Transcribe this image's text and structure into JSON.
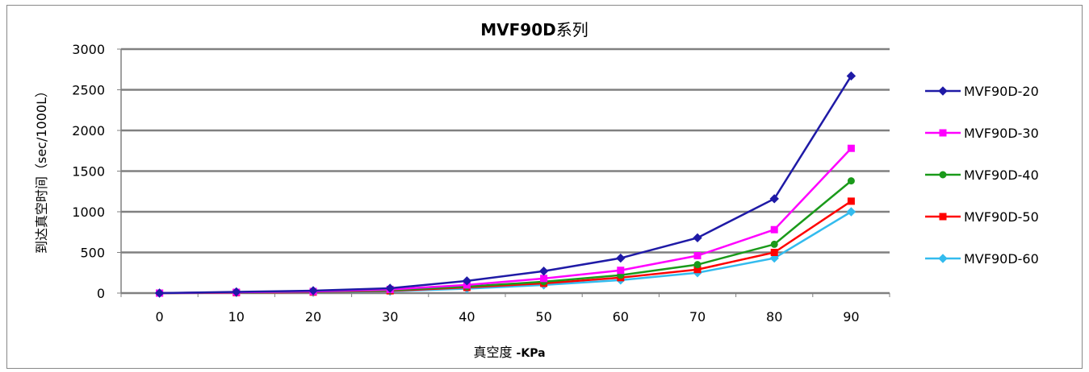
{
  "chart_data": {
    "type": "line",
    "title": "MVF90D系列",
    "title_parts": [
      "MVF90D",
      "系列"
    ],
    "xlabel": "真空度 -KPa",
    "xlabel_parts": [
      "真空度 ",
      "-KPa"
    ],
    "ylabel": "到达真空时间（sec/1000L）",
    "x": [
      0,
      10,
      20,
      30,
      40,
      50,
      60,
      70,
      80,
      90
    ],
    "x_ticks": [
      "0",
      "10",
      "20",
      "30",
      "40",
      "50",
      "60",
      "70",
      "80",
      "90"
    ],
    "y_ticks": [
      "0",
      "500",
      "1000",
      "1500",
      "2000",
      "2500",
      "3000"
    ],
    "ylim": [
      0,
      3000
    ],
    "grid": "horizontal",
    "legend_position": "right",
    "series": [
      {
        "name": "MVF90D-20",
        "color": "#1f1aa6",
        "marker": "diamond",
        "values": [
          0,
          15,
          30,
          60,
          150,
          270,
          430,
          680,
          1160,
          2670
        ]
      },
      {
        "name": "MVF90D-30",
        "color": "#ff00ff",
        "marker": "square",
        "values": [
          0,
          10,
          20,
          45,
          100,
          180,
          280,
          460,
          780,
          1780
        ]
      },
      {
        "name": "MVF90D-40",
        "color": "#1a9a1a",
        "marker": "circle",
        "values": [
          0,
          8,
          15,
          35,
          80,
          140,
          220,
          350,
          600,
          1380
        ]
      },
      {
        "name": "MVF90D-50",
        "color": "#ff0000",
        "marker": "square",
        "values": [
          0,
          5,
          12,
          28,
          70,
          120,
          190,
          290,
          500,
          1130
        ]
      },
      {
        "name": "MVF90D-60",
        "color": "#33bbee",
        "marker": "diamond",
        "values": [
          0,
          4,
          10,
          22,
          55,
          100,
          160,
          250,
          430,
          1000
        ]
      }
    ]
  }
}
